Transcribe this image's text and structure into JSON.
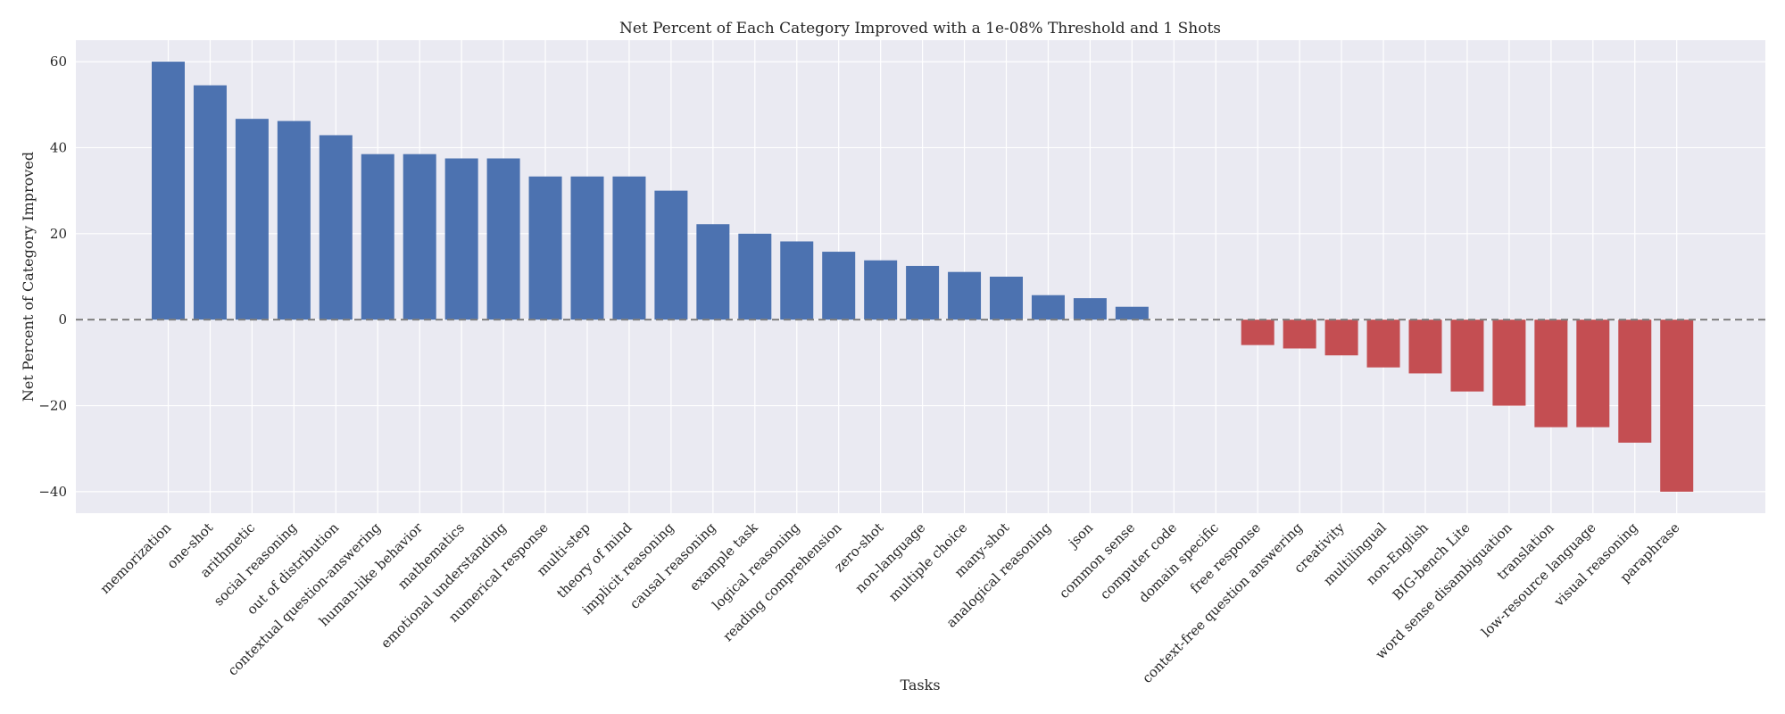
{
  "chart_data": {
    "type": "bar",
    "title": "Net Percent of Each Category Improved with a 1e-08% Threshold and 1 Shots",
    "xlabel": "Tasks",
    "ylabel": "Net Percent of Category Improved",
    "ylim": [
      -45,
      65
    ],
    "yticks": [
      -40,
      -20,
      0,
      20,
      40,
      60
    ],
    "grid": true,
    "zero_line": true,
    "colors": {
      "positive": "#4c72b0",
      "negative": "#c44e52",
      "background": "#eaeaf2",
      "grid": "#ffffff",
      "zero_line": "#7f7f7f"
    },
    "categories": [
      "memorization",
      "one-shot",
      "arithmetic",
      "social reasoning",
      "out of distribution",
      "contextual question-answering",
      "human-like behavior",
      "mathematics",
      "emotional understanding",
      "numerical response",
      "multi-step",
      "theory of mind",
      "implicit reasoning",
      "causal reasoning",
      "example task",
      "logical reasoning",
      "reading comprehension",
      "zero-shot",
      "non-language",
      "multiple choice",
      "many-shot",
      "analogical reasoning",
      "json",
      "common sense",
      "computer code",
      "domain specific",
      "free response",
      "context-free question answering",
      "creativity",
      "multilingual",
      "non-English",
      "BIG-bench Lite",
      "word sense disambiguation",
      "translation",
      "low-resource language",
      "visual reasoning",
      "paraphrase"
    ],
    "values": [
      60,
      54.5,
      46.7,
      46.2,
      42.9,
      38.5,
      38.5,
      37.5,
      37.5,
      33.3,
      33.3,
      33.3,
      30,
      22.2,
      20,
      18.2,
      15.8,
      13.8,
      12.5,
      11.1,
      10,
      5.7,
      5,
      3,
      0,
      0,
      -5.9,
      -6.7,
      -8.3,
      -11.1,
      -12.5,
      -16.7,
      -20,
      -25,
      -25,
      -28.6,
      -40
    ]
  }
}
